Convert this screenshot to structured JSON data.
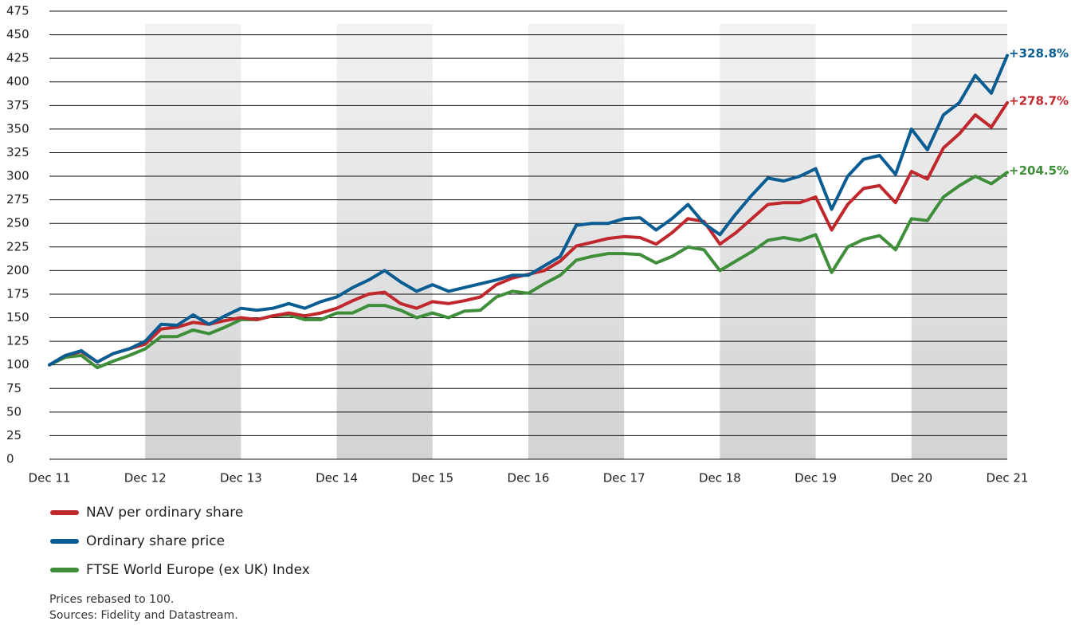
{
  "chart_data": {
    "type": "line",
    "categories": [
      "Dec 11",
      null,
      null,
      null,
      null,
      null,
      "Dec 12",
      null,
      null,
      null,
      null,
      null,
      "Dec 13",
      null,
      null,
      null,
      null,
      null,
      "Dec 14",
      null,
      null,
      null,
      null,
      null,
      "Dec 15",
      null,
      null,
      null,
      null,
      null,
      "Dec 16",
      null,
      null,
      null,
      null,
      null,
      "Dec 17",
      null,
      null,
      null,
      null,
      null,
      "Dec 18",
      null,
      null,
      null,
      null,
      null,
      "Dec 19",
      null,
      null,
      null,
      null,
      null,
      "Dec 20",
      null,
      null,
      null,
      null,
      null,
      "Dec 21"
    ],
    "ylim": [
      0,
      475
    ],
    "yticks": [
      0,
      25,
      50,
      75,
      100,
      125,
      150,
      175,
      200,
      225,
      250,
      275,
      300,
      325,
      350,
      375,
      400,
      425,
      450,
      475
    ],
    "grid": true,
    "series": [
      {
        "name": "NAV per ordinary share",
        "color": "#c0282d",
        "end_label": "+278.7%",
        "values": [
          100,
          110,
          114,
          103,
          112,
          117,
          122,
          138,
          140,
          145,
          143,
          147,
          150,
          148,
          152,
          155,
          152,
          155,
          160,
          168,
          175,
          177,
          165,
          160,
          167,
          165,
          168,
          172,
          185,
          192,
          196,
          200,
          210,
          226,
          230,
          234,
          236,
          235,
          228,
          240,
          255,
          252,
          228,
          240,
          255,
          270,
          272,
          272,
          278,
          243,
          270,
          287,
          290,
          272,
          305,
          297,
          330,
          345,
          365,
          352,
          378
        ]
      },
      {
        "name": "Ordinary share price",
        "color": "#0a5d92",
        "end_label": "+328.8%",
        "values": [
          100,
          110,
          115,
          103,
          112,
          117,
          125,
          143,
          142,
          153,
          143,
          152,
          160,
          158,
          160,
          165,
          160,
          167,
          172,
          182,
          190,
          200,
          188,
          178,
          185,
          178,
          182,
          186,
          190,
          195,
          195,
          205,
          215,
          248,
          250,
          250,
          255,
          256,
          243,
          255,
          270,
          250,
          238,
          260,
          280,
          298,
          295,
          300,
          308,
          265,
          300,
          318,
          322,
          302,
          350,
          328,
          365,
          378,
          407,
          388,
          428
        ]
      },
      {
        "name": "FTSE World Europe (ex UK) Index",
        "color": "#3f8f3a",
        "end_label": "+204.5%",
        "values": [
          100,
          108,
          110,
          97,
          104,
          110,
          117,
          130,
          130,
          137,
          133,
          140,
          148,
          148,
          152,
          153,
          148,
          148,
          155,
          155,
          163,
          163,
          158,
          150,
          155,
          150,
          157,
          158,
          172,
          178,
          176,
          186,
          195,
          211,
          215,
          218,
          218,
          217,
          208,
          215,
          225,
          222,
          200,
          210,
          220,
          232,
          235,
          232,
          238,
          198,
          225,
          233,
          237,
          222,
          255,
          253,
          278,
          290,
          300,
          292,
          304
        ]
      }
    ],
    "notes": [
      "Prices rebased to 100.",
      "Sources: Fidelity and Datastream."
    ]
  }
}
